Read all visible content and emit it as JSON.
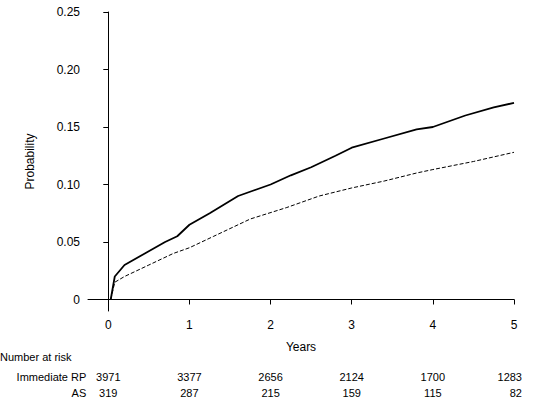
{
  "chart_data": {
    "type": "line",
    "x_label": "Years",
    "y_label": "Probability",
    "xlim": [
      -0.25,
      5
    ],
    "xticks": [
      0,
      1,
      2,
      3,
      4,
      5
    ],
    "ylim": [
      -0.01,
      0.25
    ],
    "yticks": [
      0,
      0.05,
      {
        "value": 0.1,
        "label": "0.10"
      },
      {
        "value": 0.15,
        "label": "0.15"
      },
      {
        "value": 0.2,
        "label": "0.20"
      },
      {
        "value": 0.25,
        "label": "0.25"
      }
    ],
    "grid": false,
    "series": [
      {
        "name": "Immediate RP",
        "color": "#000000",
        "line_style": "solid",
        "x": [
          0.03,
          0.08,
          0.2,
          0.45,
          0.7,
          0.85,
          1.0,
          1.25,
          1.6,
          2.0,
          2.25,
          2.5,
          2.8,
          3.0,
          3.4,
          3.8,
          4.0,
          4.4,
          4.75,
          5.0
        ],
        "values": [
          0,
          0.02,
          0.03,
          0.04,
          0.05,
          0.055,
          0.065,
          0.075,
          0.09,
          0.1,
          0.108,
          0.115,
          0.125,
          0.132,
          0.14,
          0.148,
          0.15,
          0.16,
          0.167,
          0.171
        ]
      },
      {
        "name": "AS",
        "color": "#000000",
        "line_style": "dashed",
        "x": [
          0.03,
          0.08,
          0.2,
          0.5,
          0.8,
          1.0,
          1.3,
          1.75,
          2.2,
          2.6,
          3.0,
          3.4,
          3.8,
          4.0,
          4.5,
          5.0
        ],
        "values": [
          0,
          0.015,
          0.02,
          0.03,
          0.04,
          0.045,
          0.055,
          0.07,
          0.08,
          0.09,
          0.097,
          0.103,
          0.11,
          0.113,
          0.12,
          0.128
        ]
      }
    ],
    "risk_table": {
      "title": "Number at risk",
      "rows": [
        {
          "label": "Immediate RP",
          "values": [
            3971,
            3377,
            2656,
            2124,
            1700,
            1283
          ]
        },
        {
          "label": "AS",
          "values": [
            319,
            287,
            215,
            159,
            115,
            82
          ]
        }
      ]
    }
  }
}
